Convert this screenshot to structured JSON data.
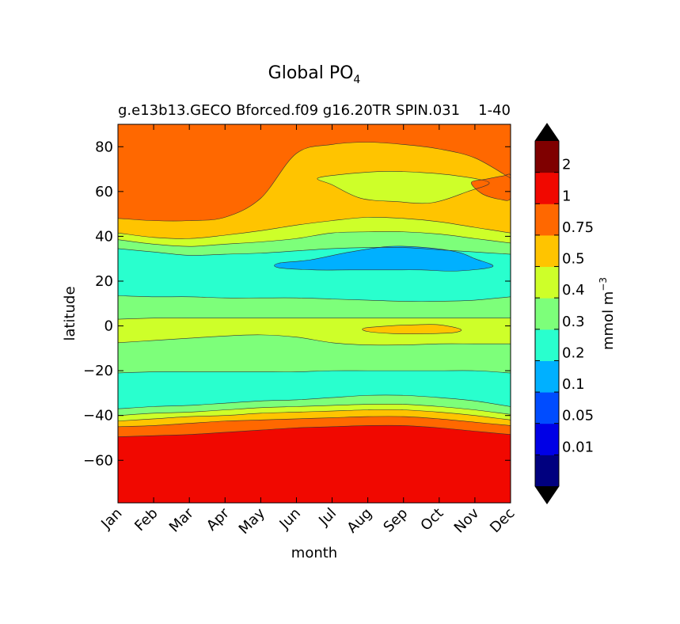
{
  "chart_data": {
    "type": "heatmap",
    "subtype": "filled-contour",
    "title_main": "Global PO",
    "title_sub": "4",
    "subtitle_left": "g.e13b13.GECO Bforced.f09 g16.20TR SPIN.031",
    "subtitle_right": "1-40",
    "xlabel": "month",
    "ylabel": "latitude",
    "x_categories": [
      "Jan",
      "Feb",
      "Mar",
      "Apr",
      "May",
      "Jun",
      "Jul",
      "Aug",
      "Sep",
      "Oct",
      "Nov",
      "Dec"
    ],
    "x_range": [
      1,
      12
    ],
    "ylim": [
      -79,
      90
    ],
    "y_ticks": [
      80,
      60,
      40,
      20,
      0,
      -20,
      -40,
      -60
    ],
    "y_tick_labels": [
      "80",
      "60",
      "40",
      "20",
      "0",
      "−20",
      "−40",
      "−60"
    ],
    "colorbar": {
      "label_main": "mmol m",
      "label_exp": "−3",
      "levels": [
        0,
        0.01,
        0.05,
        0.1,
        0.2,
        0.3,
        0.4,
        0.5,
        0.75,
        1,
        2,
        3
      ],
      "tick_labels": [
        "0.01",
        "0.05",
        "0.1",
        "0.2",
        "0.3",
        "0.4",
        "0.5",
        "0.75",
        "1",
        "2"
      ],
      "colors": [
        "#00007f",
        "#0000e6",
        "#004cff",
        "#00b0ff",
        "#29ffce",
        "#7dff7a",
        "#ceff29",
        "#ffc400",
        "#ff6800",
        "#f10800",
        "#7f0000"
      ],
      "under_color": "#000000",
      "over_color": "#000000"
    },
    "fill_order_colors": [
      "#f10800",
      "#ff6800",
      "#ffc400",
      "#7dff7a",
      "#29ffce",
      "#7dff7a",
      "#ceff29"
    ],
    "contour_boundaries": {
      "b10_red_top": [
        -49.5,
        -49.0,
        -48.5,
        -47.5,
        -46.5,
        -45.5,
        -45.0,
        -44.5,
        -44.5,
        -45.5,
        -47.0,
        -48.5
      ],
      "b075_orange_top": [
        -45.0,
        -44.5,
        -43.5,
        -42.5,
        -42.0,
        -41.5,
        -41.0,
        -40.5,
        -40.5,
        -41.5,
        -43.0,
        -44.5
      ],
      "b05_yellow_top": [
        -42.5,
        -41.5,
        -40.5,
        -40.0,
        -39.0,
        -38.5,
        -38.0,
        -37.5,
        -37.5,
        -38.5,
        -40.0,
        -42.0
      ],
      "b04_lime_top": [
        -40.0,
        -39.0,
        -38.5,
        -37.5,
        -36.5,
        -36.0,
        -35.5,
        -35.0,
        -35.0,
        -36.0,
        -37.5,
        -39.5
      ],
      "b03_green_top": [
        -37.0,
        -36.0,
        -35.5,
        -34.5,
        -33.5,
        -33.0,
        -32.0,
        -31.0,
        -31.0,
        -32.0,
        -33.5,
        -36.0
      ],
      "b02_south_top": [
        -21.0,
        -20.5,
        -20.5,
        -20.5,
        -20.5,
        -20.5,
        -20.0,
        -20.0,
        -20.0,
        -20.0,
        -20.0,
        -21.0
      ],
      "b03_south_top": [
        -7.5,
        -6.5,
        -5.5,
        -4.5,
        -4.0,
        -5.0,
        -7.5,
        -8.5,
        -8.5,
        -8.0,
        -8.0,
        -8.0
      ],
      "b04_eq_top": [
        3.0,
        3.5,
        3.5,
        3.5,
        3.5,
        3.5,
        3.5,
        3.5,
        3.5,
        3.5,
        3.5,
        3.5
      ],
      "b03_north_top": [
        13.5,
        13.0,
        13.0,
        12.5,
        12.5,
        12.5,
        12.0,
        11.5,
        11.0,
        11.0,
        11.5,
        13.0
      ],
      "b02_north_top": [
        34.5,
        33.0,
        31.5,
        32.0,
        32.5,
        33.5,
        34.5,
        35.0,
        35.0,
        34.0,
        33.0,
        32.0
      ],
      "b03_mid_top": [
        38.5,
        36.5,
        35.5,
        36.5,
        37.5,
        39.0,
        41.5,
        42.0,
        42.0,
        41.0,
        39.0,
        37.0
      ],
      "b04_mid_top": [
        41.5,
        39.5,
        39.0,
        40.5,
        42.5,
        45.0,
        47.0,
        48.5,
        48.0,
        46.5,
        44.0,
        41.5
      ],
      "b05_north_top": [
        48.0,
        47.0,
        47.0,
        48.5,
        57.0,
        77.0,
        81.0,
        82.0,
        81.0,
        79.0,
        75.0,
        66.0
      ]
    },
    "features": {
      "blue_patch_0_1_to_0_2": {
        "x": [
          5.5,
          6.4,
          7.5,
          8.6,
          9.6,
          10.5,
          11.0,
          11.5,
          10.5,
          9.5,
          8.5,
          7.5,
          6.5,
          5.5
        ],
        "y": [
          28.0,
          29.5,
          33.0,
          35.5,
          35.0,
          33.0,
          30.0,
          26.5,
          24.5,
          25.0,
          25.0,
          25.0,
          25.0,
          26.0
        ]
      },
      "equatorial_yellow_patch_0_5": {
        "x": [
          7.9,
          8.6,
          9.3,
          10.0,
          10.6,
          10.4,
          9.6,
          8.8,
          8.0
        ],
        "y": [
          -1.0,
          0.0,
          0.5,
          0.5,
          -1.5,
          -3.0,
          -3.5,
          -3.5,
          -2.5
        ]
      },
      "lime_patch_0_4_north": {
        "x": [
          6.6,
          7.5,
          8.5,
          9.5,
          10.5,
          11.4,
          10.8,
          9.8,
          8.8,
          7.8,
          7.0
        ],
        "y": [
          66.0,
          68.0,
          69.0,
          68.5,
          67.0,
          64.0,
          60.0,
          55.0,
          55.5,
          57.0,
          63.0
        ]
      },
      "orange_patch_0_75_dec": {
        "x": [
          10.9,
          11.3,
          11.8,
          12.0,
          12.0,
          11.7,
          11.2
        ],
        "y": [
          64.0,
          65.5,
          67.0,
          67.0,
          57.0,
          56.5,
          59.0
        ]
      }
    }
  }
}
